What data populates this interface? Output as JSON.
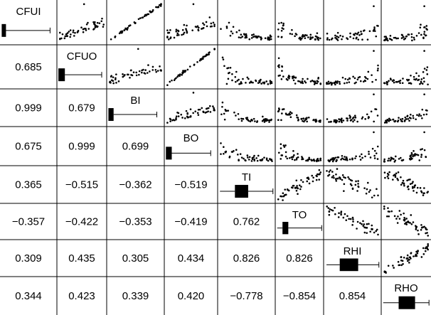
{
  "chart_data": {
    "type": "scatter-matrix",
    "title": "",
    "variables": [
      "CFUI",
      "CFUO",
      "BI",
      "BO",
      "TI",
      "TO",
      "RHI",
      "RHO"
    ],
    "correlations": [
      [
        null,
        null,
        null,
        null,
        null,
        null,
        null,
        null
      ],
      [
        "0.685",
        null,
        null,
        null,
        null,
        null,
        null,
        null
      ],
      [
        "0.999",
        "0.679",
        null,
        null,
        null,
        null,
        null,
        null
      ],
      [
        "0.675",
        "0.999",
        "0.699",
        null,
        null,
        null,
        null,
        null
      ],
      [
        "0.365",
        "−0.515",
        "−0.362",
        "−0.519",
        null,
        null,
        null,
        null
      ],
      [
        "−0.357",
        "−0.422",
        "−0.353",
        "−0.419",
        "0.762",
        null,
        null,
        null
      ],
      [
        "0.309",
        "0.435",
        "0.305",
        "0.434",
        "0.826",
        "0.826",
        null,
        null
      ],
      [
        "0.344",
        "0.423",
        "0.339",
        "0.420",
        "−0.778",
        "−0.854",
        "0.854",
        null
      ]
    ],
    "boxplots": [
      {
        "variable": "CFUI",
        "min": 0.03,
        "q1": 0.03,
        "median": 0.06,
        "q3": 0.1,
        "max": 0.88
      },
      {
        "variable": "CFUO",
        "min": 0.03,
        "q1": 0.03,
        "median": 0.09,
        "q3": 0.16,
        "max": 0.9
      },
      {
        "variable": "BI",
        "min": 0.03,
        "q1": 0.03,
        "median": 0.07,
        "q3": 0.12,
        "max": 0.87
      },
      {
        "variable": "BO",
        "min": 0.03,
        "q1": 0.03,
        "median": 0.07,
        "q3": 0.14,
        "max": 0.87
      },
      {
        "variable": "TI",
        "min": 0.04,
        "q1": 0.3,
        "median": 0.4,
        "q3": 0.53,
        "max": 0.96
      },
      {
        "variable": "TO",
        "min": 0.04,
        "q1": 0.15,
        "median": 0.2,
        "q3": 0.27,
        "max": 0.96
      },
      {
        "variable": "RHI",
        "min": 0.05,
        "q1": 0.28,
        "median": 0.42,
        "q3": 0.6,
        "max": 0.96
      },
      {
        "variable": "RHO",
        "min": 0.04,
        "q1": 0.35,
        "median": 0.5,
        "q3": 0.68,
        "max": 0.96
      }
    ],
    "points_per_panel": 50,
    "colors": {
      "points": "#000000",
      "box": "#000000",
      "grid": "#000000",
      "background": "#ffffff"
    }
  }
}
